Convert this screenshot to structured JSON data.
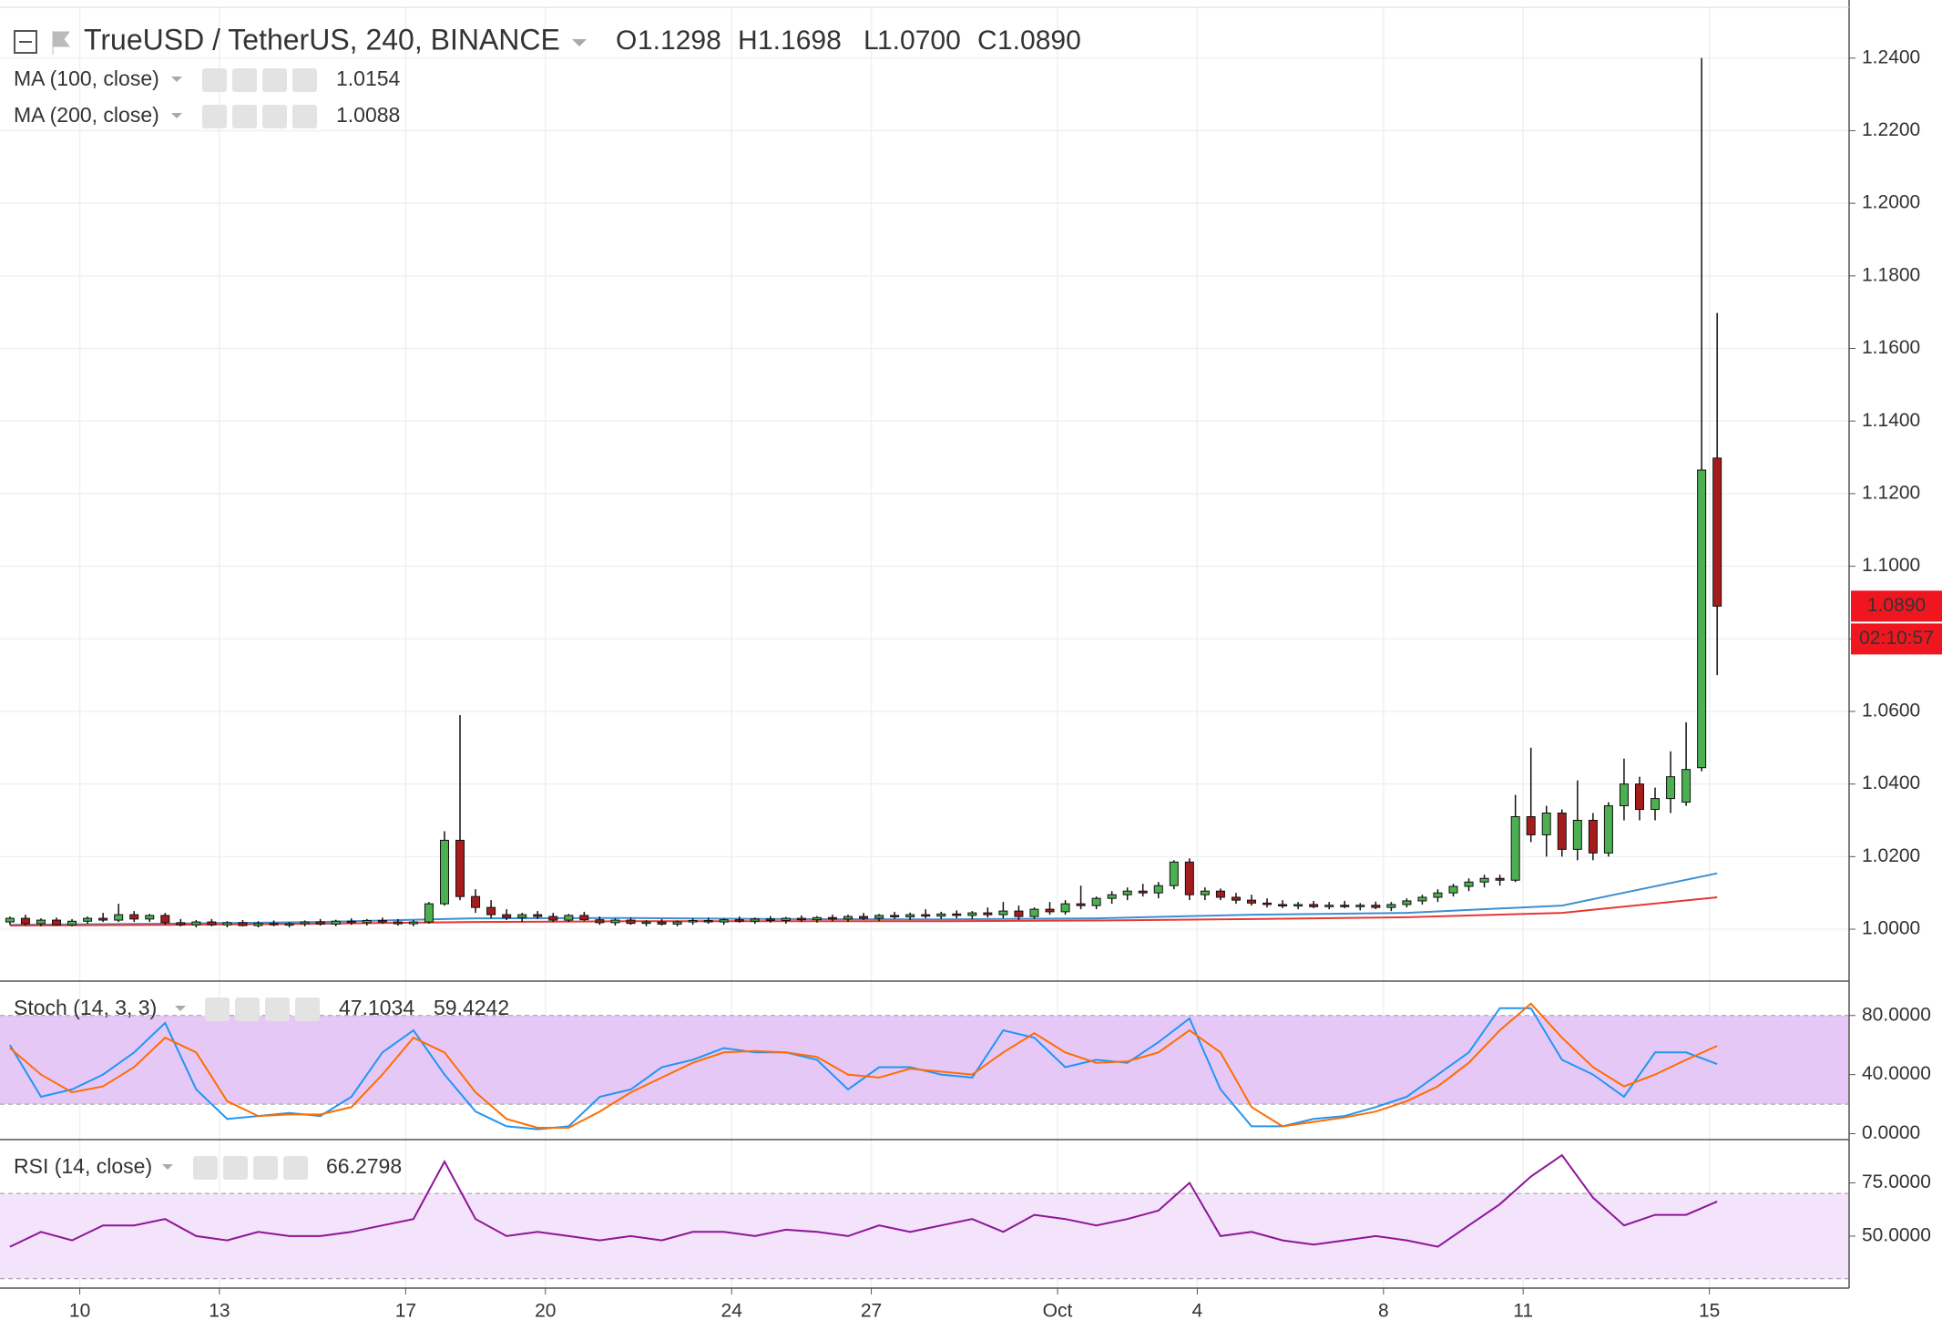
{
  "chart_data": [
    {
      "type": "candlestick",
      "title": "TrueUSD / TetherUS, 240, BINANCE",
      "ohlc_labels": [
        "O",
        "H",
        "L",
        "C"
      ],
      "ohlc_values": [
        "1.1298",
        "1.1698",
        "1.0700",
        "1.0890"
      ],
      "up_color": "#4caf50",
      "down_color": "#a51c1c",
      "candles": [
        [
          1.002,
          1.0035,
          1.0012,
          1.003
        ],
        [
          1.003,
          1.004,
          1.001,
          1.0015
        ],
        [
          1.0015,
          1.003,
          1.0008,
          1.0025
        ],
        [
          1.0025,
          1.0032,
          1.001,
          1.0012
        ],
        [
          1.0012,
          1.0028,
          1.0008,
          1.0022
        ],
        [
          1.0022,
          1.0035,
          1.0015,
          1.003
        ],
        [
          1.003,
          1.0045,
          1.002,
          1.0025
        ],
        [
          1.0025,
          1.007,
          1.002,
          1.004
        ],
        [
          1.004,
          1.005,
          1.002,
          1.0028
        ],
        [
          1.0028,
          1.0042,
          1.002,
          1.0038
        ],
        [
          1.0038,
          1.0045,
          1.0012,
          1.0018
        ],
        [
          1.0018,
          1.0028,
          1.0008,
          1.0012
        ],
        [
          1.0012,
          1.0025,
          1.0005,
          1.002
        ],
        [
          1.002,
          1.0028,
          1.0008,
          1.0012
        ],
        [
          1.0012,
          1.0022,
          1.0005,
          1.0018
        ],
        [
          1.0018,
          1.0025,
          1.0008,
          1.001
        ],
        [
          1.001,
          1.0022,
          1.0005,
          1.0016
        ],
        [
          1.0016,
          1.0024,
          1.0008,
          1.0012
        ],
        [
          1.0012,
          1.002,
          1.0005,
          1.0015
        ],
        [
          1.0015,
          1.0024,
          1.0008,
          1.002
        ],
        [
          1.002,
          1.0028,
          1.001,
          1.0014
        ],
        [
          1.0014,
          1.0026,
          1.0008,
          1.0022
        ],
        [
          1.0022,
          1.003,
          1.0012,
          1.0018
        ],
        [
          1.0018,
          1.0028,
          1.001,
          1.0024
        ],
        [
          1.0024,
          1.0032,
          1.0015,
          1.002
        ],
        [
          1.002,
          1.0028,
          1.001,
          1.0015
        ],
        [
          1.0015,
          1.0025,
          1.0008,
          1.002
        ],
        [
          1.002,
          1.0075,
          1.0015,
          1.007
        ],
        [
          1.007,
          1.027,
          1.0065,
          1.0245
        ],
        [
          1.0245,
          1.059,
          1.008,
          1.009
        ],
        [
          1.009,
          1.011,
          1.0045,
          1.006
        ],
        [
          1.006,
          1.008,
          1.003,
          1.004
        ],
        [
          1.004,
          1.0055,
          1.0025,
          1.0032
        ],
        [
          1.0032,
          1.0045,
          1.002,
          1.004
        ],
        [
          1.004,
          1.005,
          1.0028,
          1.0035
        ],
        [
          1.0035,
          1.0045,
          1.002,
          1.0025
        ],
        [
          1.0025,
          1.0042,
          1.002,
          1.0038
        ],
        [
          1.0038,
          1.0048,
          1.0022,
          1.0026
        ],
        [
          1.0026,
          1.0035,
          1.0012,
          1.0018
        ],
        [
          1.0018,
          1.003,
          1.001,
          1.0025
        ],
        [
          1.0025,
          1.0032,
          1.0012,
          1.0016
        ],
        [
          1.0016,
          1.0025,
          1.0008,
          1.002
        ],
        [
          1.002,
          1.0028,
          1.001,
          1.0014
        ],
        [
          1.0014,
          1.0024,
          1.0008,
          1.002
        ],
        [
          1.002,
          1.003,
          1.0012,
          1.0024
        ],
        [
          1.0024,
          1.0032,
          1.0015,
          1.002
        ],
        [
          1.002,
          1.003,
          1.0012,
          1.0026
        ],
        [
          1.0026,
          1.0035,
          1.0018,
          1.0022
        ],
        [
          1.0022,
          1.0032,
          1.0015,
          1.0028
        ],
        [
          1.0028,
          1.0036,
          1.0018,
          1.0024
        ],
        [
          1.0024,
          1.0034,
          1.0015,
          1.003
        ],
        [
          1.003,
          1.0038,
          1.002,
          1.0026
        ],
        [
          1.0026,
          1.0036,
          1.0018,
          1.0032
        ],
        [
          1.0032,
          1.004,
          1.0022,
          1.0028
        ],
        [
          1.0028,
          1.004,
          1.002,
          1.0035
        ],
        [
          1.0035,
          1.0045,
          1.0025,
          1.003
        ],
        [
          1.003,
          1.0042,
          1.0022,
          1.0038
        ],
        [
          1.0038,
          1.0048,
          1.0028,
          1.0034
        ],
        [
          1.0034,
          1.0046,
          1.0025,
          1.004
        ],
        [
          1.004,
          1.0055,
          1.003,
          1.0036
        ],
        [
          1.0036,
          1.0048,
          1.0028,
          1.0042
        ],
        [
          1.0042,
          1.0052,
          1.003,
          1.0038
        ],
        [
          1.0038,
          1.005,
          1.0028,
          1.0045
        ],
        [
          1.0045,
          1.006,
          1.0032,
          1.004
        ],
        [
          1.004,
          1.0075,
          1.003,
          1.005
        ],
        [
          1.005,
          1.0065,
          1.0025,
          1.0035
        ],
        [
          1.0035,
          1.006,
          1.0028,
          1.0055
        ],
        [
          1.0055,
          1.0075,
          1.004,
          1.0048
        ],
        [
          1.0048,
          1.008,
          1.004,
          1.007
        ],
        [
          1.007,
          1.012,
          1.0055,
          1.0065
        ],
        [
          1.0065,
          1.009,
          1.0055,
          1.0085
        ],
        [
          1.0085,
          1.0105,
          1.007,
          1.0095
        ],
        [
          1.0095,
          1.0115,
          1.008,
          1.0105
        ],
        [
          1.0105,
          1.0125,
          1.009,
          1.01
        ],
        [
          1.01,
          1.013,
          1.0085,
          1.012
        ],
        [
          1.012,
          1.019,
          1.011,
          1.0185
        ],
        [
          1.0185,
          1.0195,
          1.008,
          1.0095
        ],
        [
          1.0095,
          1.0115,
          1.008,
          1.0105
        ],
        [
          1.0105,
          1.0112,
          1.008,
          1.0088
        ],
        [
          1.0088,
          1.01,
          1.007,
          1.008
        ],
        [
          1.008,
          1.0095,
          1.0065,
          1.0072
        ],
        [
          1.0072,
          1.0085,
          1.006,
          1.0068
        ],
        [
          1.0068,
          1.008,
          1.0058,
          1.0064
        ],
        [
          1.0064,
          1.0075,
          1.0055,
          1.0068
        ],
        [
          1.0068,
          1.0078,
          1.0058,
          1.0062
        ],
        [
          1.0062,
          1.0075,
          1.0055,
          1.0066
        ],
        [
          1.0066,
          1.0078,
          1.0058,
          1.0062
        ],
        [
          1.0062,
          1.0072,
          1.0052,
          1.0066
        ],
        [
          1.0066,
          1.0076,
          1.0055,
          1.006
        ],
        [
          1.006,
          1.0075,
          1.005,
          1.0068
        ],
        [
          1.0068,
          1.0085,
          1.006,
          1.0078
        ],
        [
          1.0078,
          1.0095,
          1.0068,
          1.0088
        ],
        [
          1.0088,
          1.011,
          1.0075,
          1.01
        ],
        [
          1.01,
          1.0125,
          1.009,
          1.0118
        ],
        [
          1.0118,
          1.014,
          1.0105,
          1.013
        ],
        [
          1.013,
          1.015,
          1.0115,
          1.014
        ],
        [
          1.014,
          1.015,
          1.012,
          1.0135
        ],
        [
          1.0135,
          1.037,
          1.013,
          1.031
        ],
        [
          1.031,
          1.05,
          1.024,
          1.026
        ],
        [
          1.026,
          1.034,
          1.02,
          1.032
        ],
        [
          1.032,
          1.033,
          1.02,
          1.022
        ],
        [
          1.022,
          1.041,
          1.019,
          1.03
        ],
        [
          1.03,
          1.032,
          1.019,
          1.021
        ],
        [
          1.021,
          1.035,
          1.02,
          1.034
        ],
        [
          1.034,
          1.047,
          1.03,
          1.04
        ],
        [
          1.04,
          1.042,
          1.03,
          1.033
        ],
        [
          1.033,
          1.039,
          1.03,
          1.036
        ],
        [
          1.036,
          1.049,
          1.032,
          1.042
        ],
        [
          1.035,
          1.057,
          1.034,
          1.044
        ],
        [
          1.0445,
          1.24,
          1.0435,
          1.1265
        ],
        [
          1.1298,
          1.1698,
          1.07,
          1.089
        ]
      ],
      "overlays": [
        {
          "name": "MA (100, close)",
          "value_label": "1.0154",
          "color": "#3d8fd1",
          "x": [
            0,
            10,
            20,
            30,
            40,
            50,
            60,
            70,
            80,
            90,
            100,
            110
          ],
          "values": [
            1.0012,
            1.0015,
            1.002,
            1.003,
            1.0031,
            1.0028,
            1.0027,
            1.003,
            1.004,
            1.0045,
            1.0065,
            1.0154
          ]
        },
        {
          "name": "MA (200, close)",
          "value_label": "1.0088",
          "color": "#e53935",
          "x": [
            0,
            10,
            20,
            30,
            40,
            50,
            60,
            70,
            80,
            90,
            100,
            110
          ],
          "values": [
            1.001,
            1.0012,
            1.0015,
            1.002,
            1.0022,
            1.0022,
            1.0022,
            1.0024,
            1.0028,
            1.0033,
            1.0045,
            1.0088
          ]
        }
      ],
      "last_price_label": "1.0890",
      "countdown": "02:10:57",
      "xlim": [
        -0.64,
        118.5
      ],
      "xticks": [
        {
          "value": 4.5,
          "label": "10"
        },
        {
          "value": 13.5,
          "label": "13"
        },
        {
          "value": 25.5,
          "label": "17"
        },
        {
          "value": 34.5,
          "label": "20"
        },
        {
          "value": 46.5,
          "label": "24"
        },
        {
          "value": 55.5,
          "label": "27"
        },
        {
          "value": 67.5,
          "label": "Oct"
        },
        {
          "value": 76.5,
          "label": "4"
        },
        {
          "value": 88.5,
          "label": "8"
        },
        {
          "value": 97.5,
          "label": "11"
        },
        {
          "value": 109.5,
          "label": "15"
        }
      ],
      "ylim": [
        0.9857,
        1.254
      ],
      "yticks": [
        {
          "value": 1.0,
          "label": "1.0000"
        },
        {
          "value": 1.02,
          "label": "1.0200"
        },
        {
          "value": 1.04,
          "label": "1.0400"
        },
        {
          "value": 1.06,
          "label": "1.0600"
        },
        {
          "value": 1.08,
          "label": "1.0800"
        },
        {
          "value": 1.1,
          "label": "1.1000"
        },
        {
          "value": 1.12,
          "label": "1.1200"
        },
        {
          "value": 1.14,
          "label": "1.1400"
        },
        {
          "value": 1.16,
          "label": "1.1600"
        },
        {
          "value": 1.18,
          "label": "1.1800"
        },
        {
          "value": 1.2,
          "label": "1.2000"
        },
        {
          "value": 1.22,
          "label": "1.2200"
        },
        {
          "value": 1.24,
          "label": "1.2400"
        }
      ],
      "grid": true
    },
    {
      "type": "line",
      "title": "Stoch (14, 3, 3)",
      "band": [
        20,
        80
      ],
      "band_color": "#e6c8f7",
      "x": [
        0,
        2,
        4,
        6,
        8,
        10,
        12,
        14,
        16,
        18,
        20,
        22,
        24,
        26,
        28,
        30,
        32,
        34,
        36,
        38,
        40,
        42,
        44,
        46,
        48,
        50,
        52,
        54,
        56,
        58,
        60,
        62,
        64,
        66,
        68,
        70,
        72,
        74,
        76,
        78,
        80,
        82,
        84,
        86,
        88,
        90,
        92,
        94,
        96,
        98,
        100,
        102,
        104,
        106,
        108,
        110
      ],
      "series": [
        {
          "color": "#2196f3",
          "value_label": "47.1034",
          "values": [
            60,
            25,
            30,
            40,
            55,
            75,
            30,
            10,
            12,
            14,
            12,
            25,
            55,
            70,
            40,
            15,
            5,
            3,
            5,
            25,
            30,
            45,
            50,
            58,
            55,
            55,
            50,
            30,
            45,
            45,
            40,
            38,
            70,
            65,
            45,
            50,
            48,
            62,
            78,
            30,
            5,
            5,
            10,
            12,
            18,
            25,
            40,
            55,
            85,
            85,
            50,
            40,
            25,
            55,
            55,
            47.1034
          ]
        },
        {
          "color": "#ff6d00",
          "value_label": "59.4242",
          "values": [
            58,
            40,
            28,
            32,
            45,
            65,
            55,
            22,
            12,
            13,
            13,
            18,
            40,
            65,
            55,
            28,
            10,
            4,
            4,
            15,
            28,
            38,
            48,
            55,
            56,
            55,
            52,
            40,
            38,
            44,
            42,
            40,
            55,
            68,
            55,
            48,
            49,
            55,
            70,
            55,
            18,
            5,
            8,
            11,
            15,
            22,
            32,
            48,
            70,
            88,
            65,
            45,
            32,
            40,
            50,
            59.4242
          ]
        }
      ],
      "ylim": [
        -4,
        103.3
      ],
      "yticks": [
        {
          "value": 0,
          "label": "0.0000"
        },
        {
          "value": 40,
          "label": "40.0000"
        },
        {
          "value": 80,
          "label": "80.0000"
        }
      ]
    },
    {
      "type": "line",
      "title": "RSI (14, close)",
      "band": [
        30,
        70
      ],
      "band_color": "#f3e3fb",
      "x": [
        0,
        2,
        4,
        6,
        8,
        10,
        12,
        14,
        16,
        18,
        20,
        22,
        24,
        26,
        28,
        30,
        32,
        34,
        36,
        38,
        40,
        42,
        44,
        46,
        48,
        50,
        52,
        54,
        56,
        58,
        60,
        62,
        64,
        66,
        68,
        70,
        72,
        74,
        76,
        78,
        80,
        82,
        84,
        86,
        88,
        90,
        92,
        94,
        96,
        98,
        100,
        102,
        104,
        106,
        108,
        110
      ],
      "series": [
        {
          "color": "#8e1599",
          "value_label": "66.2798",
          "values": [
            45,
            52,
            48,
            55,
            55,
            58,
            50,
            48,
            52,
            50,
            50,
            52,
            55,
            58,
            85,
            58,
            50,
            52,
            50,
            48,
            50,
            48,
            52,
            52,
            50,
            53,
            52,
            50,
            55,
            52,
            55,
            58,
            52,
            60,
            58,
            55,
            58,
            62,
            75,
            50,
            52,
            48,
            46,
            48,
            50,
            48,
            45,
            55,
            65,
            78,
            88,
            68,
            55,
            60,
            60,
            66.2798
          ]
        }
      ],
      "ylim": [
        25.6,
        95.3
      ],
      "yticks": [
        {
          "value": 50,
          "label": "50.0000"
        },
        {
          "value": 75,
          "label": "75.0000"
        }
      ]
    }
  ]
}
